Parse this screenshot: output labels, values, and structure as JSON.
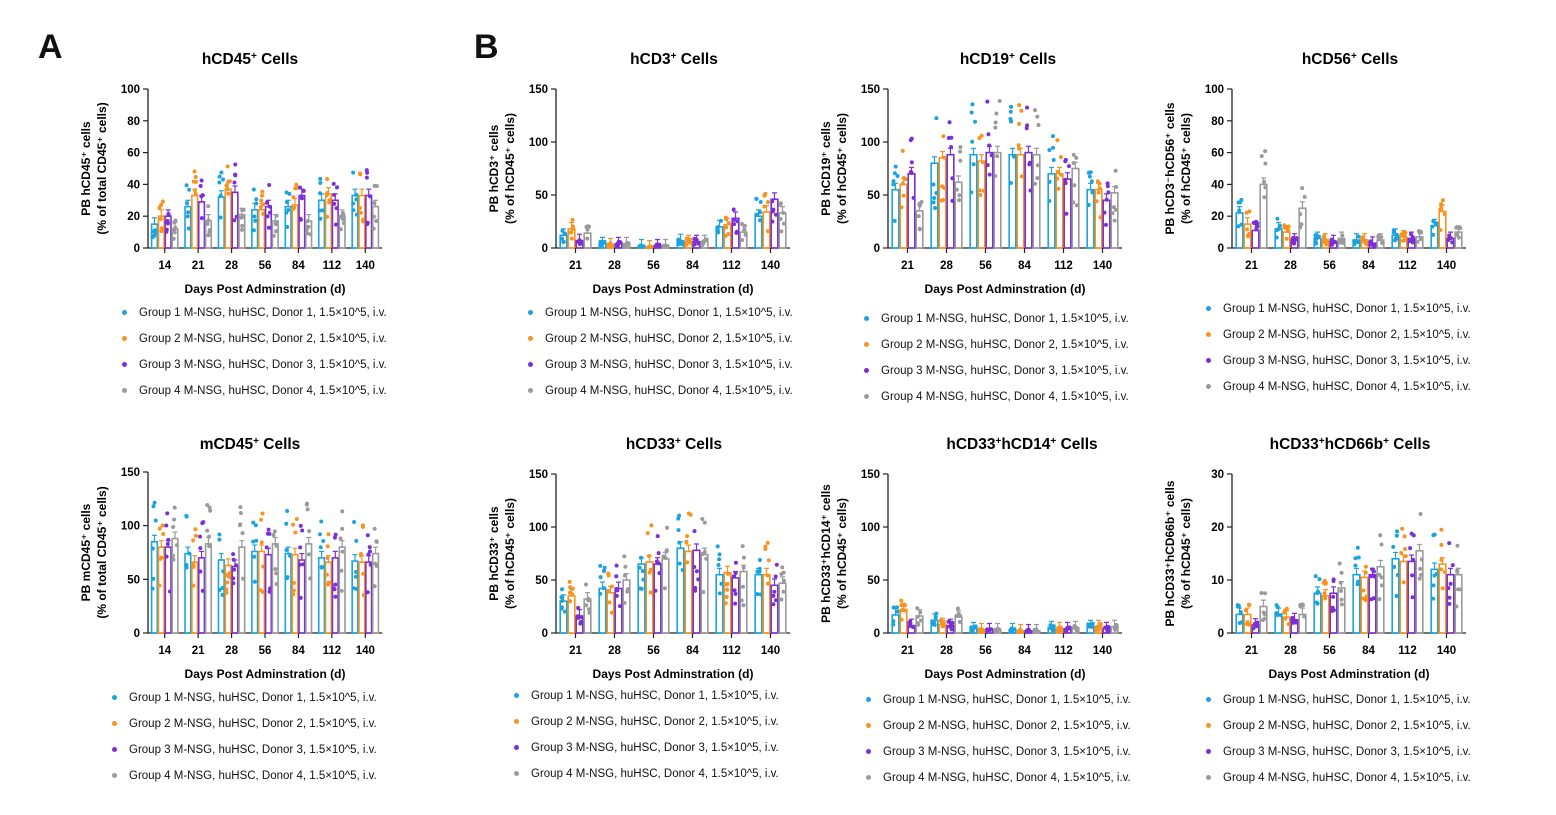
{
  "panel_labels": [
    "A",
    "B"
  ],
  "legend_labels": [
    "Group 1 M-NSG, huHSC, Donor 1, 1.5×10^5, i.v.",
    "Group 2 M-NSG, huHSC, Donor 2, 1.5×10^5, i.v.",
    "Group 3 M-NSG, huHSC, Donor 3, 1.5×10^5, i.v.",
    "Group 4 M-NSG, huHSC, Donor 4, 1.5×10^5, i.v."
  ],
  "colors": {
    "group1": "#1ba3e0",
    "group2": "#f7931e",
    "group3": "#7b2fd6",
    "group4": "#9a9a9a",
    "axis": "#222222"
  },
  "chart_data": [
    {
      "id": "hcd45",
      "type": "bar",
      "title": "hCD45",
      "title_sup": "+",
      "title_suffix": " Cells",
      "ylabel1": "PB hCD45⁺ cells",
      "ylabel2": "(% of total CD45⁺ cells)",
      "xlabel": "Days Post Adminstration (d)",
      "ylim": [
        0,
        100
      ],
      "yticks": [
        0,
        20,
        40,
        60,
        80,
        100
      ],
      "categories": [
        "14",
        "21",
        "28",
        "56",
        "84",
        "112",
        "140"
      ],
      "series": [
        {
          "name": "Group 1",
          "values": [
            15,
            26,
            32,
            24,
            26,
            30,
            33
          ]
        },
        {
          "name": "Group 2",
          "values": [
            20,
            33,
            37,
            24,
            27,
            34,
            33
          ]
        },
        {
          "name": "Group 3",
          "values": [
            20,
            29,
            35,
            26,
            33,
            30,
            33
          ]
        },
        {
          "name": "Group 4",
          "values": [
            12,
            17,
            21,
            17,
            17,
            20,
            26
          ]
        }
      ]
    },
    {
      "id": "hcd3",
      "type": "bar",
      "title": "hCD3",
      "title_sup": "+",
      "title_suffix": " Cells",
      "ylabel1": "PB hCD3⁺ cells",
      "ylabel2": "(% of hCD45⁺ cells)",
      "xlabel": "Days Post Adminstration (d)",
      "ylim": [
        0,
        150
      ],
      "yticks": [
        0,
        50,
        100,
        150
      ],
      "categories": [
        "21",
        "28",
        "56",
        "84",
        "112",
        "140"
      ],
      "series": [
        {
          "name": "Group 1",
          "values": [
            12,
            4,
            2,
            7,
            20,
            30
          ]
        },
        {
          "name": "Group 2",
          "values": [
            18,
            3,
            1,
            6,
            22,
            34
          ]
        },
        {
          "name": "Group 3",
          "values": [
            7,
            4,
            2,
            6,
            28,
            46
          ]
        },
        {
          "name": "Group 4",
          "values": [
            14,
            4,
            2,
            6,
            15,
            33
          ]
        }
      ]
    },
    {
      "id": "hcd19",
      "type": "bar",
      "title": "hCD19",
      "title_sup": "+",
      "title_suffix": " Cells",
      "ylabel1": "PB hCD19⁺ cells",
      "ylabel2": "(% of hCD45⁺ cells)",
      "xlabel": "Days Post Adminstration (d)",
      "ylim": [
        0,
        150
      ],
      "yticks": [
        0,
        50,
        100,
        150
      ],
      "categories": [
        "21",
        "28",
        "56",
        "84",
        "112",
        "140"
      ],
      "series": [
        {
          "name": "Group 1",
          "values": [
            55,
            80,
            88,
            88,
            70,
            55
          ]
        },
        {
          "name": "Group 2",
          "values": [
            60,
            85,
            82,
            88,
            70,
            55
          ]
        },
        {
          "name": "Group 3",
          "values": [
            70,
            88,
            90,
            90,
            65,
            45
          ]
        },
        {
          "name": "Group 4",
          "values": [
            35,
            62,
            90,
            88,
            75,
            52
          ]
        }
      ]
    },
    {
      "id": "hcd56",
      "type": "bar",
      "title": "hCD56",
      "title_sup": "+",
      "title_suffix": " Cells",
      "ylabel1": "PB hCD3⁻hCD56⁺ cells",
      "ylabel2": "(% of hCD45⁺ cells)",
      "xlabel": "",
      "ylim": [
        0,
        100
      ],
      "yticks": [
        0,
        20,
        40,
        60,
        80,
        100
      ],
      "categories": [
        "21",
        "28",
        "56",
        "84",
        "112",
        "140"
      ],
      "series": [
        {
          "name": "Group 1",
          "values": [
            22,
            12,
            6,
            5,
            8,
            14
          ]
        },
        {
          "name": "Group 2",
          "values": [
            15,
            10,
            5,
            5,
            7,
            23
          ]
        },
        {
          "name": "Group 3",
          "values": [
            11,
            5,
            4,
            3,
            6,
            6
          ]
        },
        {
          "name": "Group 4",
          "values": [
            40,
            25,
            6,
            5,
            7,
            10
          ]
        }
      ]
    },
    {
      "id": "mcd45",
      "type": "bar",
      "title": "mCD45",
      "title_sup": "+",
      "title_suffix": " Cells",
      "ylabel1": "PB mCD45⁺ cells",
      "ylabel2": "(% of total CD45⁺ cells)",
      "xlabel": "Days Post Adminstration (d)",
      "ylim": [
        0,
        150
      ],
      "yticks": [
        0,
        50,
        100,
        150
      ],
      "categories": [
        "14",
        "21",
        "28",
        "56",
        "84",
        "112",
        "140"
      ],
      "series": [
        {
          "name": "Group 1",
          "values": [
            85,
            74,
            68,
            76,
            74,
            70,
            67
          ]
        },
        {
          "name": "Group 2",
          "values": [
            80,
            66,
            63,
            76,
            73,
            66,
            66
          ]
        },
        {
          "name": "Group 3",
          "values": [
            80,
            70,
            62,
            73,
            68,
            70,
            66
          ]
        },
        {
          "name": "Group 4",
          "values": [
            88,
            83,
            80,
            83,
            83,
            80,
            74
          ]
        }
      ]
    },
    {
      "id": "hcd33",
      "type": "bar",
      "title": "hCD33",
      "title_sup": "+",
      "title_suffix": " Cells",
      "ylabel1": "PB hCD33⁺ cells",
      "ylabel2": "(% of hCD45⁺ cells)",
      "xlabel": "Days Post Adminstration (d)",
      "ylim": [
        0,
        150
      ],
      "yticks": [
        0,
        50,
        100,
        150
      ],
      "categories": [
        "21",
        "28",
        "56",
        "84",
        "112",
        "140"
      ],
      "series": [
        {
          "name": "Group 1",
          "values": [
            30,
            42,
            65,
            80,
            55,
            55
          ]
        },
        {
          "name": "Group 2",
          "values": [
            35,
            38,
            67,
            77,
            57,
            55
          ]
        },
        {
          "name": "Group 3",
          "values": [
            16,
            42,
            65,
            78,
            52,
            45
          ]
        },
        {
          "name": "Group 4",
          "values": [
            32,
            50,
            70,
            74,
            58,
            47
          ]
        }
      ]
    },
    {
      "id": "hcd33cd14",
      "type": "bar",
      "title": "hCD33",
      "title_sup": "+",
      "title_mid": "hCD14",
      "title_sup2": "+",
      "title_suffix": " Cells",
      "ylabel1": "PB hCD33⁺hCD14⁺ cells",
      "ylabel2": "(% of hCD45⁺ cells)",
      "xlabel": "Days Post Adminstration (d)",
      "ylim": [
        0,
        150
      ],
      "yticks": [
        0,
        50,
        100,
        150
      ],
      "categories": [
        "21",
        "28",
        "56",
        "84",
        "112",
        "140"
      ],
      "series": [
        {
          "name": "Group 1",
          "values": [
            17,
            12,
            4,
            3,
            5,
            6
          ]
        },
        {
          "name": "Group 2",
          "values": [
            22,
            8,
            3,
            2,
            4,
            6
          ]
        },
        {
          "name": "Group 3",
          "values": [
            7,
            7,
            3,
            2,
            4,
            4
          ]
        },
        {
          "name": "Group 4",
          "values": [
            16,
            15,
            3,
            2,
            5,
            6
          ]
        }
      ]
    },
    {
      "id": "hcd33cd66b",
      "type": "bar",
      "title": "hCD33",
      "title_sup": "+",
      "title_mid": "hCD66b",
      "title_sup2": "+",
      "title_suffix": " Cells",
      "ylabel1": "PB hCD33⁺hCD66b⁺ cells",
      "ylabel2": "(% of hCD45⁺ cells)",
      "xlabel": "Days Post Adminstration (d)",
      "ylim": [
        0,
        30
      ],
      "yticks": [
        0,
        10,
        20,
        30
      ],
      "categories": [
        "21",
        "28",
        "56",
        "84",
        "112",
        "140"
      ],
      "series": [
        {
          "name": "Group 1",
          "values": [
            3.5,
            3.5,
            7.5,
            11,
            14,
            12
          ]
        },
        {
          "name": "Group 2",
          "values": [
            3.5,
            3,
            7,
            10.5,
            13.5,
            13
          ]
        },
        {
          "name": "Group 3",
          "values": [
            1.5,
            2.5,
            7.5,
            11,
            13.5,
            11
          ]
        },
        {
          "name": "Group 4",
          "values": [
            5,
            3.5,
            8.5,
            12.5,
            15.5,
            11
          ]
        }
      ]
    }
  ]
}
